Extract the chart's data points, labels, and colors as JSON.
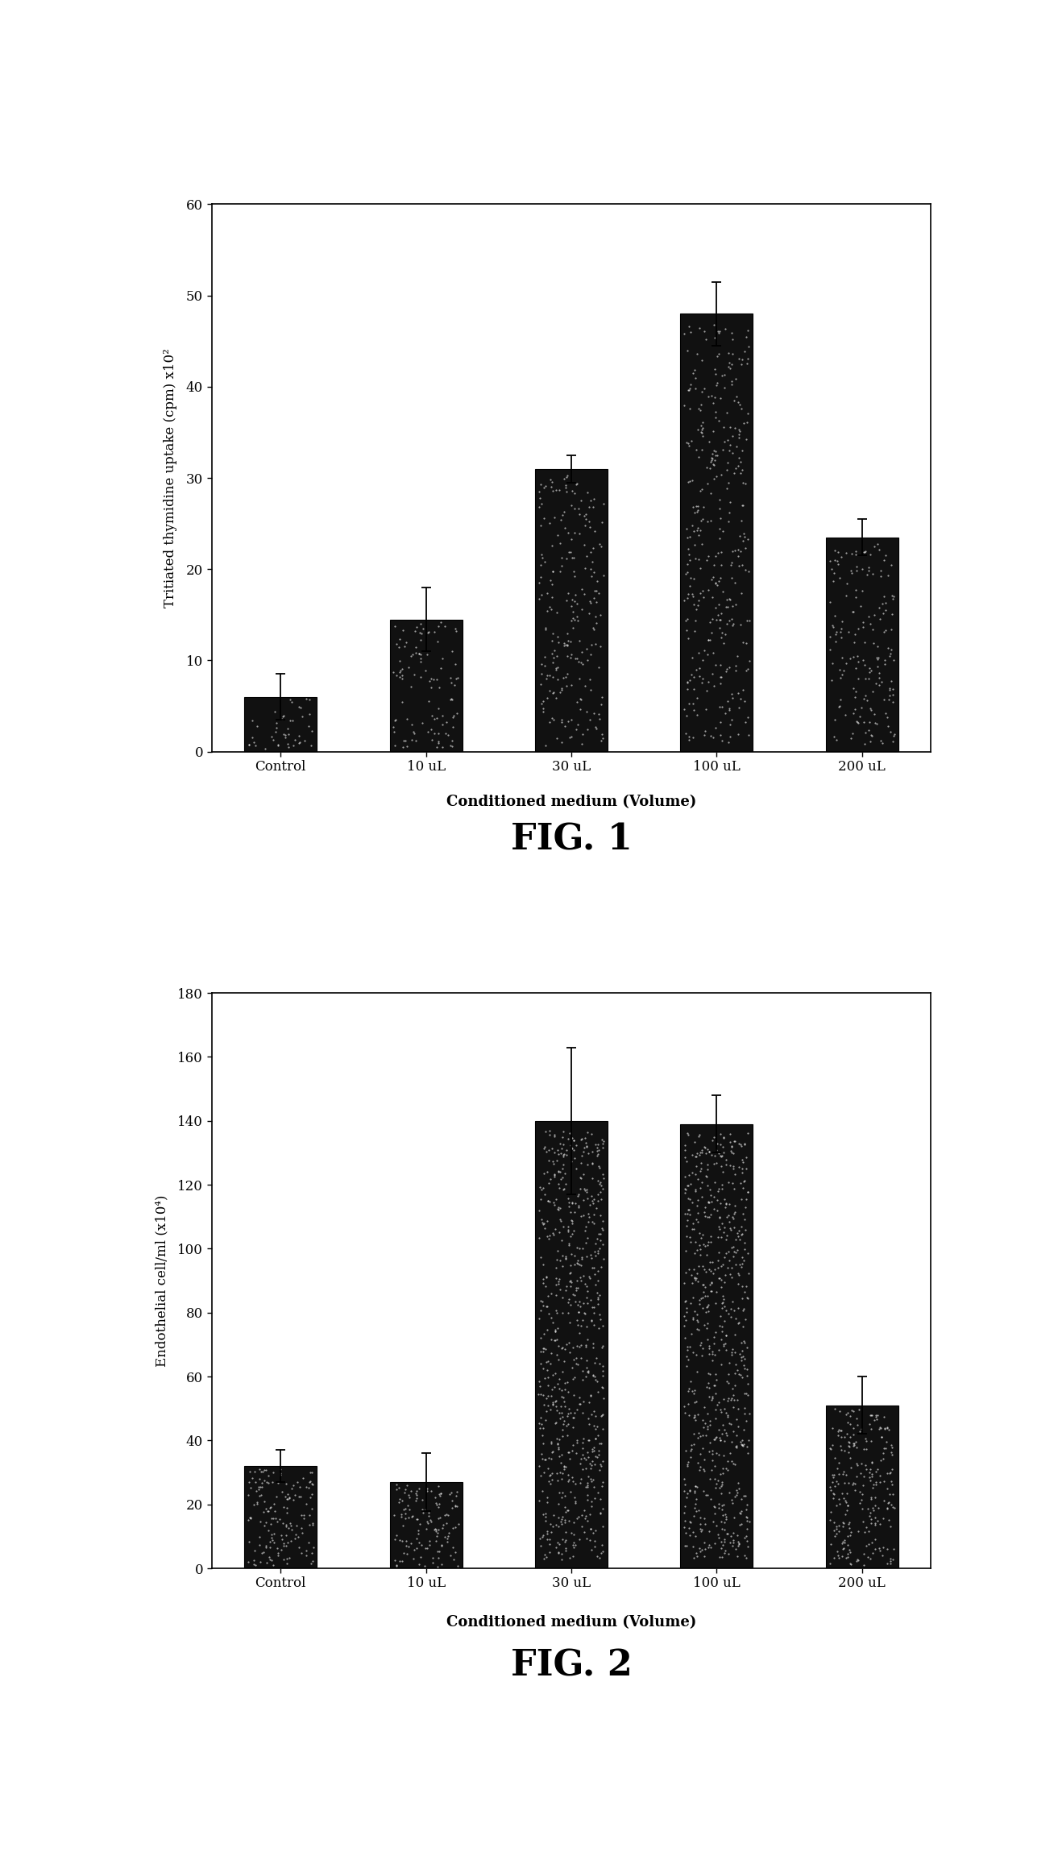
{
  "fig1": {
    "categories": [
      "Control",
      "10 uL",
      "30 uL",
      "100 uL",
      "200 uL"
    ],
    "values": [
      6,
      14.5,
      31,
      48,
      23.5
    ],
    "errors": [
      2.5,
      3.5,
      1.5,
      3.5,
      2.0
    ],
    "ylabel": "Tritiated thymidine uptake (cpm) x10²",
    "xlabel": "Conditioned medium (Volume)",
    "ylim": [
      0,
      60
    ],
    "yticks": [
      0,
      10,
      20,
      30,
      40,
      50,
      60
    ],
    "fignum": "FIG. 1"
  },
  "fig2": {
    "categories": [
      "Control",
      "10 uL",
      "30 uL",
      "100 uL",
      "200 uL"
    ],
    "values": [
      32,
      27,
      140,
      139,
      51
    ],
    "errors": [
      5,
      9,
      23,
      9,
      9
    ],
    "ylabel": "Endothelial cell/ml (x10⁴)",
    "xlabel": "Conditioned medium (Volume)",
    "ylim": [
      0,
      180
    ],
    "yticks": [
      0,
      20,
      40,
      60,
      80,
      100,
      120,
      140,
      160,
      180
    ],
    "fignum": "FIG. 2"
  },
  "bar_color": "#111111",
  "background_color": "#ffffff",
  "bar_width": 0.5,
  "capsize": 4
}
